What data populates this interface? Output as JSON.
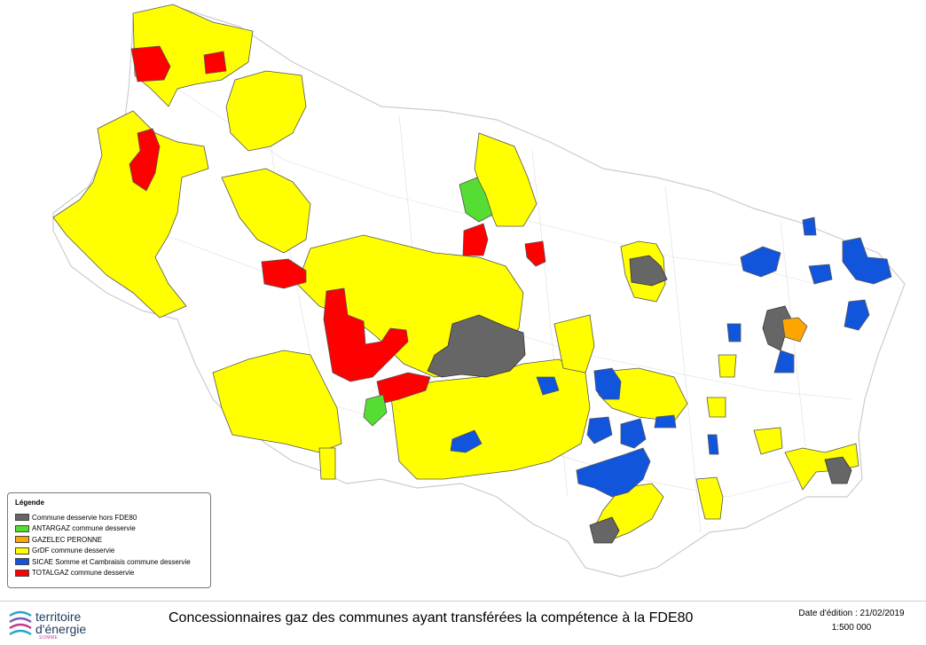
{
  "legend": {
    "title": "Légende",
    "items": [
      {
        "label": "Commune desservie hors FDE80",
        "color": "#666666"
      },
      {
        "label": "ANTARGAZ commune desservie",
        "color": "#55dd33"
      },
      {
        "label": "GAZELEC PERONNE",
        "color": "#ffa500"
      },
      {
        "label": "GrDF commune desservie",
        "color": "#ffff00"
      },
      {
        "label": "SICAE Somme et Cambraisis commune desservie",
        "color": "#1155dd"
      },
      {
        "label": "TOTALGAZ commune desservie",
        "color": "#ff0000"
      }
    ]
  },
  "footer": {
    "logo_line1": "territoire",
    "logo_line2": "d'énergie",
    "logo_line3": "SOMME",
    "title": "Concessionnaires gaz des communes ayant transférées la compétence à la FDE80",
    "date": "Date d'édition : 21/02/2019",
    "scale": "1:500 000"
  },
  "colors": {
    "outline": "#cccccc",
    "border": "#555555"
  }
}
